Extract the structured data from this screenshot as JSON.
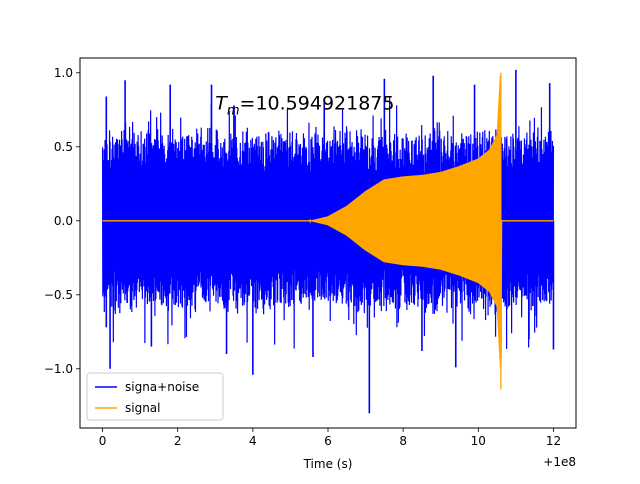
{
  "chart_data": {
    "type": "line",
    "title": "",
    "annotation": {
      "text_main": "T",
      "text_sub": "m",
      "text_value": "=10.594921875",
      "x": 3.0,
      "y": 0.8
    },
    "xlabel": "Time (s)",
    "ylabel": "",
    "xlim": [
      -0.6,
      12.6
    ],
    "ylim": [
      -1.4,
      1.1
    ],
    "x_offset_label": "+1e8",
    "x_ticks": [
      0,
      2,
      4,
      6,
      8,
      10,
      12
    ],
    "x_tick_labels": [
      "0",
      "2",
      "4",
      "6",
      "8",
      "10",
      "12"
    ],
    "y_ticks": [
      -1.0,
      -0.5,
      0.0,
      0.5,
      1.0
    ],
    "y_tick_labels": [
      "−1.0",
      "−0.5",
      "0.0",
      "0.5",
      "1.0"
    ],
    "grid": false,
    "legend": {
      "position": "lower-left"
    },
    "series": [
      {
        "name": "signa+noise",
        "color": "#0000ff",
        "description": "dense noise band spanning 0–12",
        "band_x": [
          0,
          12
        ],
        "band_typical": [
          -0.55,
          0.55
        ],
        "peaks_positive": [
          [
            0.1,
            0.84
          ],
          [
            0.6,
            0.95
          ],
          [
            1.8,
            0.92
          ],
          [
            2.9,
            0.92
          ],
          [
            3.5,
            0.78
          ],
          [
            5.9,
            0.82
          ],
          [
            7.5,
            0.96
          ],
          [
            8.8,
            0.98
          ],
          [
            9.9,
            0.92
          ],
          [
            11.0,
            1.02
          ],
          [
            11.9,
            0.93
          ]
        ],
        "peaks_negative": [
          [
            0.1,
            -0.72
          ],
          [
            0.2,
            -1.0
          ],
          [
            1.3,
            -0.85
          ],
          [
            3.3,
            -0.9
          ],
          [
            4.0,
            -1.04
          ],
          [
            5.6,
            -0.92
          ],
          [
            7.1,
            -1.3
          ],
          [
            8.5,
            -0.88
          ],
          [
            9.4,
            -0.99
          ],
          [
            10.6,
            -0.93
          ],
          [
            12.0,
            -0.87
          ]
        ]
      },
      {
        "name": "signal",
        "color": "#ffa500",
        "description": "chirp: zero until ~5.5, grows to plateau ~0.3 around 7.5–8, then grows to a spike near 10.6, zero afterwards",
        "envelope_x": [
          0,
          5.5,
          6.0,
          6.5,
          7.0,
          7.5,
          8.0,
          8.5,
          9.0,
          9.5,
          10.0,
          10.3,
          10.5,
          10.59,
          10.6,
          12.0
        ],
        "envelope_y": [
          0,
          0,
          0.03,
          0.1,
          0.2,
          0.28,
          0.3,
          0.31,
          0.33,
          0.37,
          0.42,
          0.48,
          0.58,
          1.0,
          0,
          0
        ],
        "spike_min": -1.14,
        "spike_max": 1.0,
        "spike_x": 10.6
      }
    ]
  }
}
